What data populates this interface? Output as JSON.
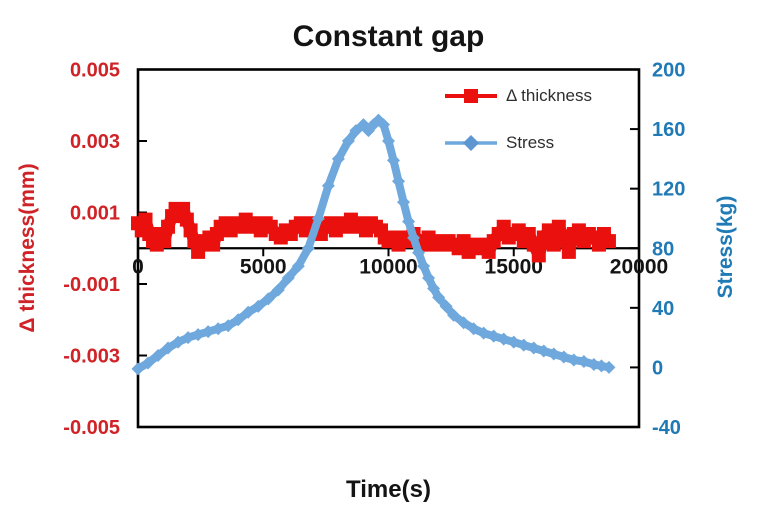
{
  "chart_data": {
    "type": "line",
    "title": "Constant gap",
    "xlabel": "Time(s)",
    "grid": false,
    "legend_position": "top-right-inside",
    "x_axis": {
      "min": 0,
      "max": 20000,
      "tick_values": [
        0,
        5000,
        10000,
        15000,
        20000
      ],
      "tick_labels": [
        "0",
        "5000",
        "10000",
        "15000",
        "20000"
      ],
      "crosses_left_axis_at": 0,
      "label_color": "#141414"
    },
    "left_axis": {
      "label": "Δ thickness(mm)",
      "min": -0.005,
      "max": 0.005,
      "tick_values": [
        0.005,
        0.003,
        0.001,
        -0.001,
        -0.003,
        -0.005
      ],
      "tick_labels": [
        "0.005",
        "0.003",
        "0.001",
        "-0.001",
        "-0.003",
        "-0.005"
      ],
      "color": "#d02327"
    },
    "right_axis": {
      "label": "Stress(kg)",
      "min": -40,
      "max": 200,
      "tick_values": [
        200,
        160,
        120,
        80,
        40,
        0,
        -40
      ],
      "tick_labels": [
        "200",
        "160",
        "120",
        "80",
        "40",
        "0",
        "-40"
      ],
      "color": "#1f7ab5"
    },
    "legend": {
      "entries": [
        {
          "label": "Δ thickness",
          "color": "#e9100d",
          "marker": "square"
        },
        {
          "label": "Stress",
          "color": "#6fa8dc",
          "marker": "diamond"
        }
      ]
    },
    "series": [
      {
        "name": "Δ thickness",
        "axis": "left",
        "color": "#e9100d",
        "marker": "square",
        "line_width": 12,
        "marker_size": 14,
        "points": [
          [
            0,
            0.0007
          ],
          [
            150,
            0.0005
          ],
          [
            300,
            0.0008
          ],
          [
            450,
            0.0004
          ],
          [
            600,
            0.0002
          ],
          [
            750,
            0.0001
          ],
          [
            900,
            0.0004
          ],
          [
            1050,
            0.0002
          ],
          [
            1200,
            0.0006
          ],
          [
            1360,
            0.0009
          ],
          [
            1500,
            0.0011
          ],
          [
            1650,
            0.0009
          ],
          [
            1800,
            0.0011
          ],
          [
            1950,
            0.0008
          ],
          [
            2100,
            0.0005
          ],
          [
            2250,
            0.0002
          ],
          [
            2400,
            -0.0001
          ],
          [
            2550,
            0.0002
          ],
          [
            2700,
            0.0001
          ],
          [
            2850,
            0.0003
          ],
          [
            3000,
            0.0001
          ],
          [
            3150,
            0.0004
          ],
          [
            3300,
            0.0006
          ],
          [
            3500,
            0.0007
          ],
          [
            3700,
            0.0005
          ],
          [
            3900,
            0.0007
          ],
          [
            4100,
            0.0006
          ],
          [
            4300,
            0.0008
          ],
          [
            4500,
            0.0006
          ],
          [
            4700,
            0.0007
          ],
          [
            4900,
            0.0005
          ],
          [
            5100,
            0.0007
          ],
          [
            5300,
            0.0006
          ],
          [
            5500,
            0.0004
          ],
          [
            5700,
            0.0003
          ],
          [
            5900,
            0.0005
          ],
          [
            6100,
            0.0004
          ],
          [
            6300,
            0.0006
          ],
          [
            6500,
            0.0007
          ],
          [
            6700,
            0.0005
          ],
          [
            6900,
            0.0007
          ],
          [
            7100,
            0.0006
          ],
          [
            7300,
            0.0004
          ],
          [
            7500,
            0.0006
          ],
          [
            7700,
            0.0007
          ],
          [
            7900,
            0.0005
          ],
          [
            8100,
            0.0007
          ],
          [
            8300,
            0.0006
          ],
          [
            8500,
            0.0008
          ],
          [
            8700,
            0.0006
          ],
          [
            8900,
            0.0007
          ],
          [
            9100,
            0.0005
          ],
          [
            9300,
            0.0007
          ],
          [
            9500,
            0.0006
          ],
          [
            9700,
            0.0005
          ],
          [
            9850,
            0.0003
          ],
          [
            10000,
            0.0002
          ],
          [
            10200,
            0.0003
          ],
          [
            10400,
            0.0001
          ],
          [
            10600,
            0.0003
          ],
          [
            10800,
            0.0002
          ],
          [
            11000,
            0.0004
          ],
          [
            11200,
            0.0002
          ],
          [
            11400,
            0.0001
          ],
          [
            11600,
            0.0003
          ],
          [
            11800,
            0.0001
          ],
          [
            12000,
            0.0002
          ],
          [
            12200,
            0.0001
          ],
          [
            12400,
            0.0002
          ],
          [
            12600,
            0.0001
          ],
          [
            12800,
            0.0
          ],
          [
            13000,
            0.0002
          ],
          [
            13200,
            -0.0001
          ],
          [
            13400,
            0.0001
          ],
          [
            13600,
            0.0
          ],
          [
            13800,
            0.0001
          ],
          [
            14000,
            -0.0001
          ],
          [
            14200,
            0.0002
          ],
          [
            14400,
            0.0004
          ],
          [
            14600,
            0.0006
          ],
          [
            14800,
            0.0003
          ],
          [
            15000,
            0.0004
          ],
          [
            15200,
            0.0005
          ],
          [
            15400,
            0.0002
          ],
          [
            15600,
            0.0004
          ],
          [
            15800,
            0.0001
          ],
          [
            16000,
            -0.0002
          ],
          [
            16200,
            0.0003
          ],
          [
            16400,
            0.0005
          ],
          [
            16600,
            0.0001
          ],
          [
            16800,
            0.0006
          ],
          [
            17000,
            0.0003
          ],
          [
            17200,
            -0.0001
          ],
          [
            17400,
            0.0004
          ],
          [
            17600,
            0.0005
          ],
          [
            17800,
            0.0002
          ],
          [
            18000,
            0.0004
          ],
          [
            18200,
            0.0003
          ],
          [
            18400,
            0.0001
          ],
          [
            18600,
            0.0004
          ],
          [
            18800,
            0.0002
          ]
        ]
      },
      {
        "name": "Stress",
        "axis": "right",
        "color": "#6fa8dc",
        "marker": "diamond",
        "line_width": 8,
        "marker_size": 13,
        "points": [
          [
            0,
            -1
          ],
          [
            400,
            3
          ],
          [
            800,
            8
          ],
          [
            1200,
            13
          ],
          [
            1600,
            17
          ],
          [
            2000,
            20
          ],
          [
            2400,
            22
          ],
          [
            2800,
            24
          ],
          [
            3200,
            26
          ],
          [
            3600,
            28
          ],
          [
            4000,
            32
          ],
          [
            4400,
            37
          ],
          [
            4800,
            41
          ],
          [
            5200,
            46
          ],
          [
            5600,
            52
          ],
          [
            6000,
            60
          ],
          [
            6400,
            68
          ],
          [
            6800,
            80
          ],
          [
            7200,
            100
          ],
          [
            7600,
            122
          ],
          [
            8000,
            140
          ],
          [
            8400,
            152
          ],
          [
            8700,
            159
          ],
          [
            9000,
            163
          ],
          [
            9200,
            159
          ],
          [
            9400,
            163
          ],
          [
            9600,
            166
          ],
          [
            9800,
            163
          ],
          [
            10000,
            152
          ],
          [
            10200,
            139
          ],
          [
            10400,
            125
          ],
          [
            10600,
            111
          ],
          [
            10800,
            98
          ],
          [
            11000,
            87
          ],
          [
            11200,
            77
          ],
          [
            11400,
            68
          ],
          [
            11600,
            60
          ],
          [
            11800,
            53
          ],
          [
            12000,
            47
          ],
          [
            12300,
            41
          ],
          [
            12600,
            35
          ],
          [
            13000,
            30
          ],
          [
            13400,
            26
          ],
          [
            13800,
            23
          ],
          [
            14200,
            21
          ],
          [
            14600,
            19
          ],
          [
            15000,
            17
          ],
          [
            15400,
            15
          ],
          [
            15800,
            13
          ],
          [
            16200,
            11
          ],
          [
            16600,
            9
          ],
          [
            17000,
            7
          ],
          [
            17400,
            5
          ],
          [
            17800,
            4
          ],
          [
            18200,
            2
          ],
          [
            18500,
            1
          ],
          [
            18800,
            0
          ]
        ]
      }
    ]
  }
}
